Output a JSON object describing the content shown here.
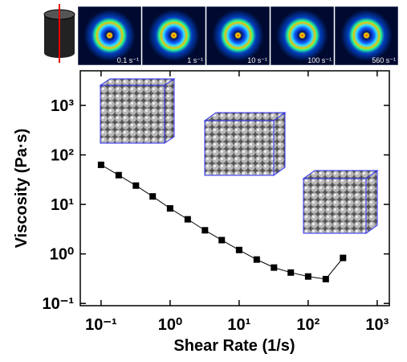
{
  "chart_data": {
    "type": "line",
    "xlabel": "Shear Rate (1/s)",
    "ylabel": "Viscosity (Pa·s)",
    "xscale": "log",
    "yscale": "log",
    "xlim": [
      0.05,
      1500
    ],
    "ylim": [
      0.09,
      5000
    ],
    "xticks": [
      {
        "value": 0.1,
        "label": "10⁻¹"
      },
      {
        "value": 1,
        "label": "10⁰"
      },
      {
        "value": 10,
        "label": "10¹"
      },
      {
        "value": 100,
        "label": "10²"
      },
      {
        "value": 1000,
        "label": "10³"
      }
    ],
    "yticks": [
      {
        "value": 0.1,
        "label": "10⁻¹"
      },
      {
        "value": 1,
        "label": "10⁰"
      },
      {
        "value": 10,
        "label": "10¹"
      },
      {
        "value": 100,
        "label": "10²"
      },
      {
        "value": 1000,
        "label": "10³"
      }
    ],
    "panel_labels": [
      "0.1 s⁻¹",
      "1 s⁻¹",
      "10 s⁻¹",
      "100 s⁻¹",
      "560 s⁻¹"
    ],
    "series": [
      {
        "color": "#000000",
        "x": [
          0.1,
          0.18,
          0.32,
          0.56,
          1,
          1.8,
          3.2,
          5.6,
          10,
          18,
          32,
          56,
          100,
          180,
          320
        ],
        "values": [
          63,
          39,
          24,
          14.5,
          8.3,
          5.0,
          3.0,
          1.9,
          1.2,
          0.77,
          0.53,
          0.42,
          0.35,
          0.31,
          0.83
        ]
      }
    ]
  }
}
